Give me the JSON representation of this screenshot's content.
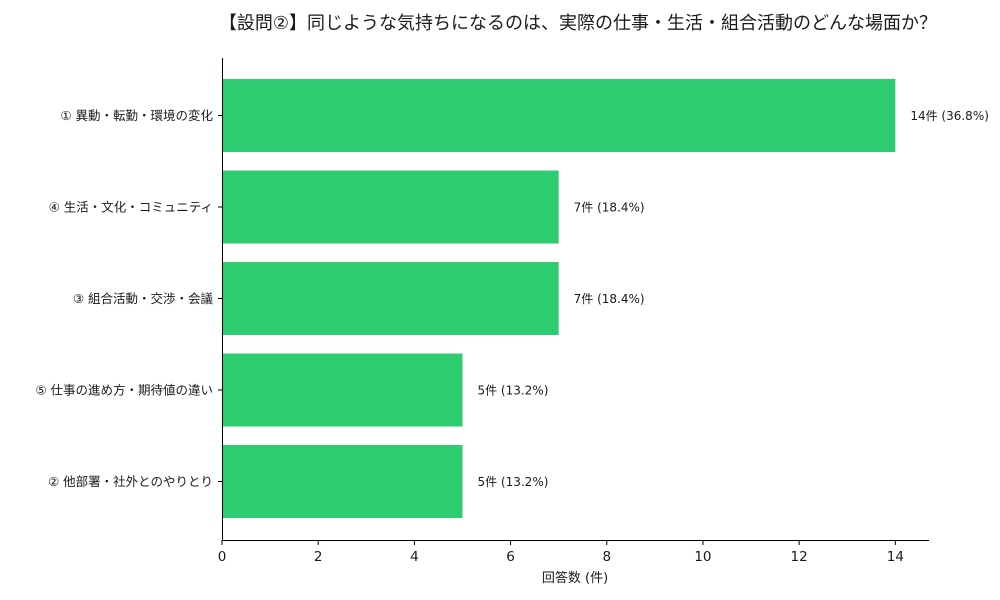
{
  "chart_data": {
    "type": "bar",
    "orientation": "horizontal",
    "title": "【設問②】同じような気持ちになるのは、実際の仕事・生活・組合活動のどんな場面か？",
    "xlabel": "回答数 (件)",
    "ylabel": "",
    "xlim": [
      0,
      14.7
    ],
    "xticks": [
      "0",
      "2",
      "4",
      "6",
      "8",
      "10",
      "12",
      "14"
    ],
    "bar_color": "#2ecc71",
    "grid": false,
    "categories": [
      "① 異動・転勤・環境の変化",
      "④ 生活・文化・コミュニティ",
      "③ 組合活動・交渉・会議",
      "⑤ 仕事の進め方・期待値の違い",
      "② 他部署・社外とのやりとり"
    ],
    "values": [
      14,
      7,
      7,
      5,
      5
    ],
    "data_labels": [
      "14件 (36.8%)",
      "7件 (18.4%)",
      "7件 (18.4%)",
      "5件 (13.2%)",
      "5件 (13.2%)"
    ]
  }
}
